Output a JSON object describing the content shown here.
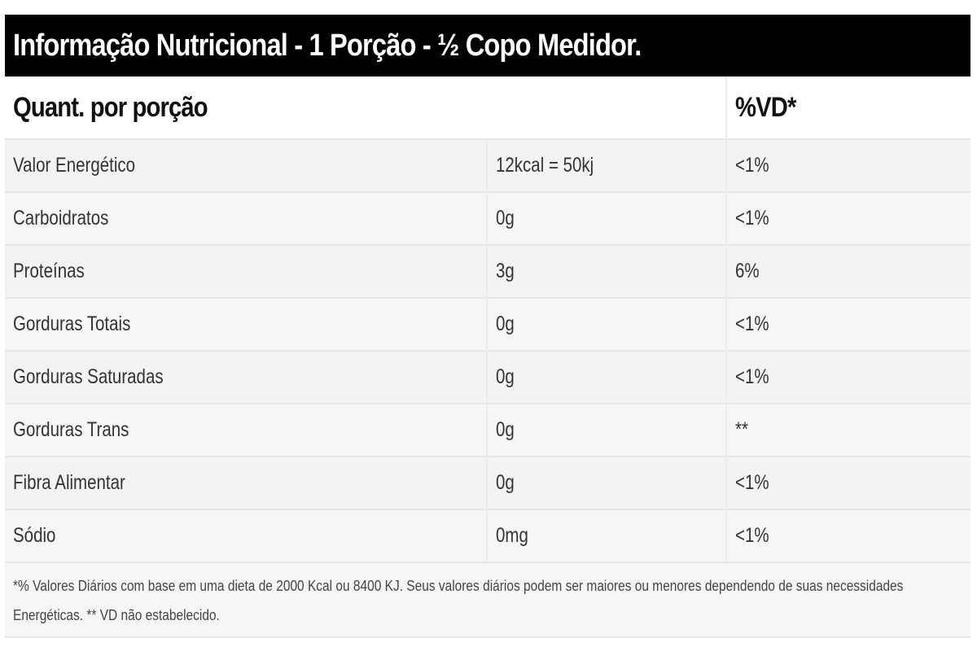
{
  "title": "Informação Nutricional - 1 Porção - ½ Copo Medidor.",
  "header": {
    "col1": "Quant. por porção",
    "col3": "%VD*"
  },
  "rows": [
    {
      "nutrient": "Valor Energético",
      "amount": "12kcal = 50kj",
      "vd": "<1%"
    },
    {
      "nutrient": "Carboidratos",
      "amount": "0g",
      "vd": "<1%"
    },
    {
      "nutrient": "Proteínas",
      "amount": "3g",
      "vd": "6%"
    },
    {
      "nutrient": "Gorduras Totais",
      "amount": "0g",
      "vd": "<1%"
    },
    {
      "nutrient": "Gorduras Saturadas",
      "amount": "0g",
      "vd": "<1%"
    },
    {
      "nutrient": "Gorduras Trans",
      "amount": "0g",
      "vd": "**"
    },
    {
      "nutrient": "Fibra Alimentar",
      "amount": "0g",
      "vd": "<1%"
    },
    {
      "nutrient": "Sódio",
      "amount": "0mg",
      "vd": "<1%"
    }
  ],
  "footnote": {
    "line1": "*% Valores Diários com base em uma dieta de 2000 Kcal ou 8400 KJ. Seus valores diários podem ser maiores ou menores dependendo de suas necessidades",
    "line2": "Energéticas. ** VD não estabelecido."
  }
}
